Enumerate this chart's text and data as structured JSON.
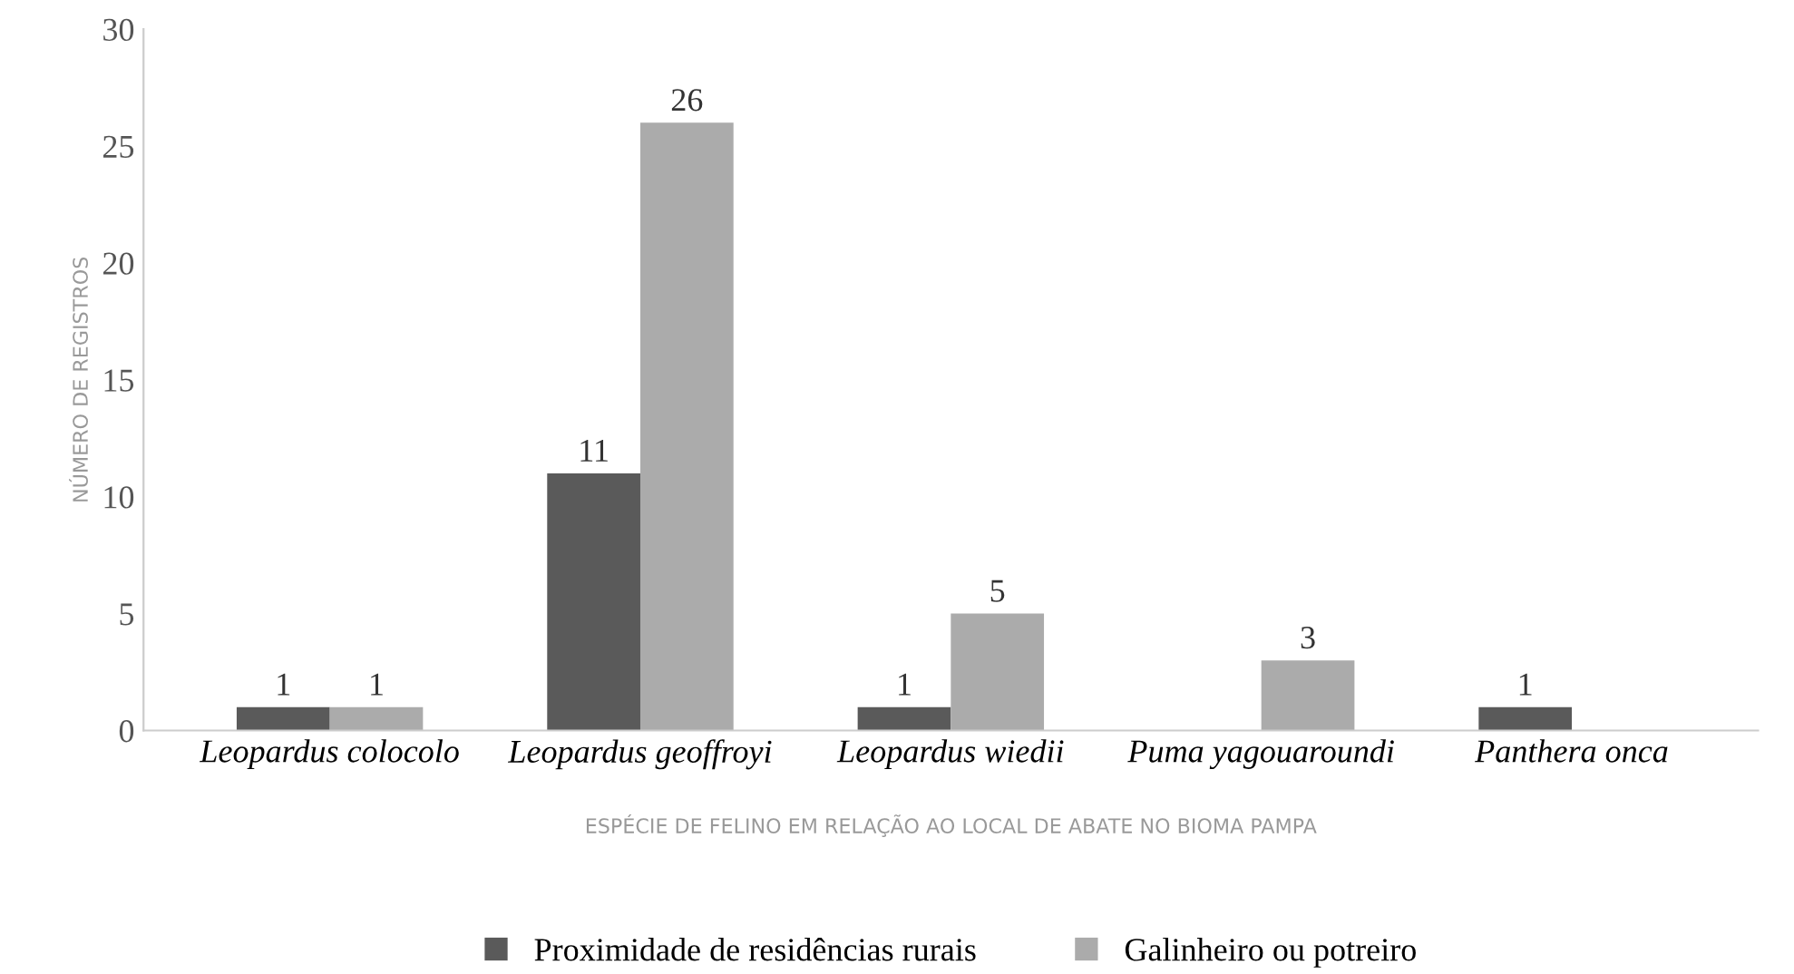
{
  "chart_data": {
    "type": "bar",
    "xlabel": "ESPÉCIE DE FELINO EM RELAÇÃO AO LOCAL DE ABATE NO BIOMA PAMPA",
    "ylabel": "NÚMERO DE REGISTROS",
    "categories": [
      "Leopardus colocolo",
      "Leopardus geoffroyi",
      "Leopardus wiedii",
      "Puma yagouaroundi",
      "Panthera onca"
    ],
    "series": [
      {
        "name": "Proximidade de residências rurais",
        "color": "#5a5a5a",
        "values": [
          1,
          11,
          1,
          null,
          1
        ]
      },
      {
        "name": "Galinheiro ou potreiro",
        "color": "#ababab",
        "values": [
          1,
          26,
          5,
          3,
          null
        ]
      }
    ],
    "ylim": [
      0,
      30
    ],
    "yticks": [
      0,
      5,
      10,
      15,
      20,
      25,
      30
    ],
    "data_labels": true,
    "grid": false,
    "legend": "bottom"
  }
}
